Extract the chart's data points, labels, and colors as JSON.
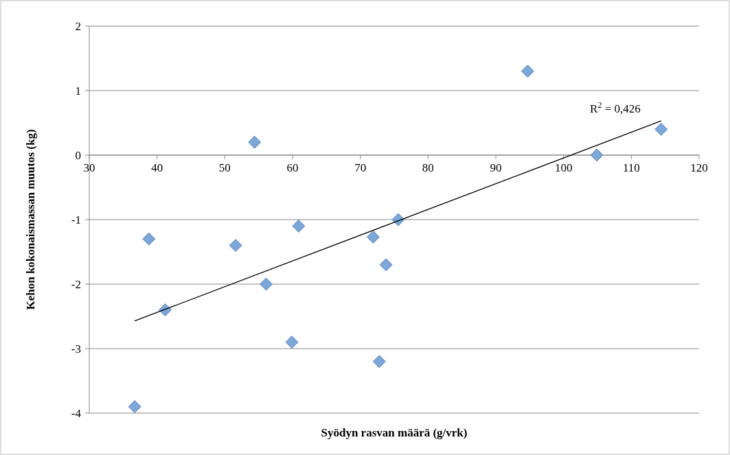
{
  "chart_data": {
    "type": "scatter",
    "xlabel": "Syödyn rasvan määrä (g/vrk)",
    "ylabel": "Kehon kokonaismassan muutos (kg)",
    "xlim": [
      30,
      120
    ],
    "xticks": [
      30,
      40,
      50,
      60,
      70,
      80,
      90,
      100,
      110,
      120
    ],
    "ylim": [
      -4,
      2
    ],
    "yticks": [
      -4,
      -3,
      -2,
      -1,
      0,
      1,
      2
    ],
    "grid": "y",
    "series": [
      {
        "color": "#7da7d9",
        "marker": "diamond",
        "x": [
          36.7,
          38.8,
          41.2,
          51.6,
          54.4,
          56.1,
          59.9,
          60.9,
          71.9,
          72.8,
          73.8,
          75.6,
          94.7,
          104.9,
          114.4
        ],
        "values": [
          -3.9,
          -1.3,
          -2.4,
          -1.4,
          0.2,
          -2.0,
          -2.9,
          -1.1,
          -1.27,
          -3.2,
          -1.7,
          -1.0,
          1.3,
          0.0,
          0.4
        ]
      },
      {
        "type": "line",
        "color": "#000000",
        "marker": "none",
        "x": [
          36.7,
          114.4
        ],
        "values": [
          -2.57,
          0.53
        ]
      }
    ],
    "annotations": [
      {
        "text": "R$^{2}$ = 0,426",
        "x": 114.4,
        "y": 0.53
      }
    ]
  }
}
